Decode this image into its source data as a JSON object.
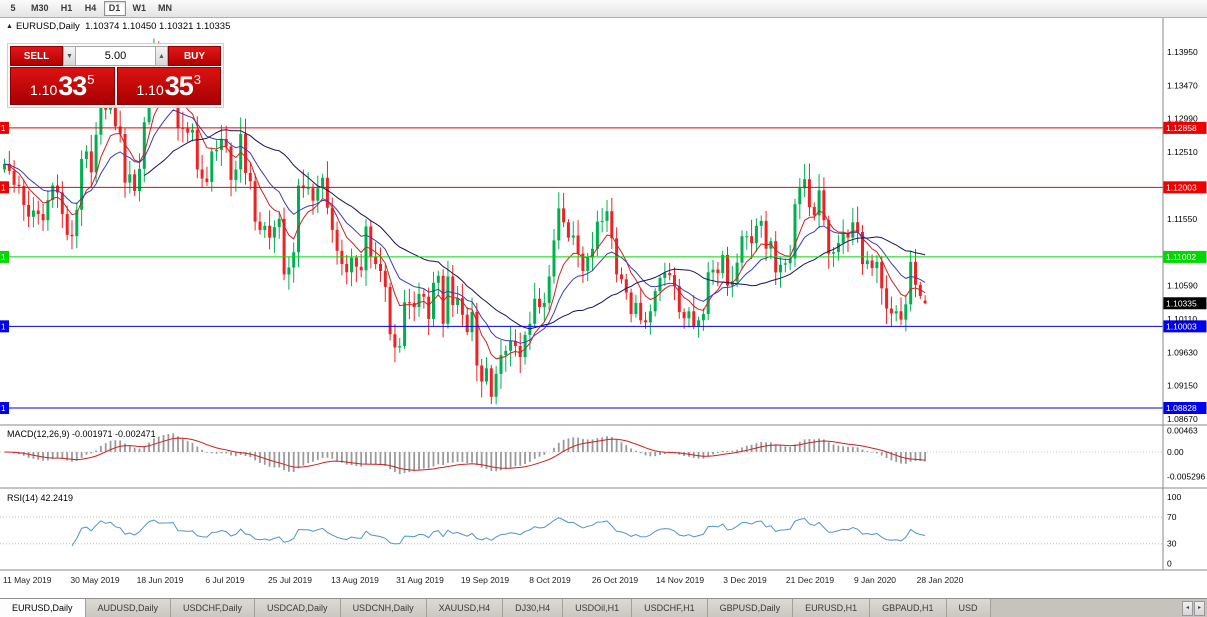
{
  "toolbar": {
    "periods": [
      {
        "label": "5",
        "active": false
      },
      {
        "label": "M30",
        "active": false
      },
      {
        "label": "H1",
        "active": false
      },
      {
        "label": "H4",
        "active": false
      },
      {
        "label": "D1",
        "active": true
      },
      {
        "label": "W1",
        "active": false
      },
      {
        "label": "MN",
        "active": false
      }
    ]
  },
  "chart_header": {
    "title": "EURUSD,Daily",
    "ohlc": "1.10374 1.10450 1.10321 1.10335"
  },
  "trade_panel": {
    "sell_label": "SELL",
    "buy_label": "BUY",
    "volume": "5.00",
    "sell_price": {
      "big_figure": "1.10",
      "pips": "33",
      "pipette": "5"
    },
    "buy_price": {
      "big_figure": "1.10",
      "pips": "35",
      "pipette": "3"
    }
  },
  "chart_data": {
    "type": "candlestick",
    "symbol": "EURUSD",
    "period": "Daily",
    "last_ohlc": {
      "open": 1.10374,
      "high": 1.1045,
      "low": 1.10321,
      "close": 1.10335
    },
    "up_color": "#00b050",
    "down_color": "#ee2222",
    "closes": [
      1.1234,
      1.1224,
      1.1204,
      1.1202,
      1.1175,
      1.1158,
      1.1167,
      1.1162,
      1.1153,
      1.1182,
      1.1203,
      1.1193,
      1.1162,
      1.1132,
      1.113,
      1.1168,
      1.1241,
      1.1252,
      1.1222,
      1.1276,
      1.1334,
      1.1312,
      1.1328,
      1.1288,
      1.1277,
      1.1207,
      1.1219,
      1.1195,
      1.1227,
      1.1294,
      1.1369,
      1.1399,
      1.1366,
      1.1368,
      1.1369,
      1.1373,
      1.1286,
      1.1285,
      1.1279,
      1.1283,
      1.1226,
      1.1213,
      1.1208,
      1.1252,
      1.1254,
      1.127,
      1.1259,
      1.1211,
      1.1226,
      1.1277,
      1.1221,
      1.1209,
      1.1151,
      1.1139,
      1.1145,
      1.1128,
      1.1143,
      1.1155,
      1.1075,
      1.1085,
      1.1107,
      1.1203,
      1.1199,
      1.1199,
      1.1181,
      1.1199,
      1.1214,
      1.1171,
      1.1139,
      1.1109,
      1.109,
      1.1078,
      1.1099,
      1.1086,
      1.1081,
      1.1144,
      1.1101,
      1.109,
      1.108,
      1.1057,
      1.0989,
      1.097,
      1.0972,
      1.1035,
      1.1034,
      1.1028,
      1.1047,
      1.1043,
      1.1011,
      1.1063,
      1.1073,
      1.1004,
      1.1072,
      1.1031,
      1.1041,
      1.1017,
      1.0992,
      1.1021,
      1.0944,
      1.0921,
      1.094,
      1.0899,
      1.0932,
      1.0959,
      1.0965,
      1.0979,
      1.0972,
      1.0956,
      1.0988,
      1.1004,
      1.104,
      1.1028,
      1.1034,
      1.1072,
      1.1124,
      1.117,
      1.115,
      1.1128,
      1.1131,
      1.1105,
      1.108,
      1.1099,
      1.1112,
      1.1151,
      1.1152,
      1.1166,
      1.1127,
      1.1075,
      1.1068,
      1.1049,
      1.1018,
      1.1034,
      1.1009,
      1.1006,
      1.1022,
      1.1051,
      1.107,
      1.1077,
      1.1074,
      1.1058,
      1.1021,
      1.1012,
      1.1022,
      1.1001,
      1.1009,
      1.1018,
      1.1078,
      1.1082,
      1.1077,
      1.1103,
      1.1059,
      1.1065,
      1.1092,
      1.113,
      1.113,
      1.112,
      1.1145,
      1.1152,
      1.1112,
      1.1123,
      1.1078,
      1.1089,
      1.1091,
      1.1098,
      1.1176,
      1.1199,
      1.1212,
      1.1172,
      1.116,
      1.1196,
      1.1153,
      1.1105,
      1.1107,
      1.112,
      1.1134,
      1.1128,
      1.115,
      1.1136,
      1.109,
      1.1095,
      1.1084,
      1.1093,
      1.1055,
      1.1026,
      1.1019,
      1.1022,
      1.101,
      1.1032,
      1.1093,
      1.106,
      1.1044,
      1.10335
    ],
    "x_labels": [
      "11 May 2019",
      "30 May 2019",
      "18 Jun 2019",
      "6 Jul 2019",
      "25 Jul 2019",
      "13 Aug 2019",
      "31 Aug 2019",
      "19 Sep 2019",
      "8 Oct 2019",
      "26 Oct 2019",
      "14 Nov 2019",
      "3 Dec 2019",
      "21 Dec 2019",
      "9 Jan 2020",
      "28 Jan 2020"
    ],
    "y_ticks": [
      "1.13950",
      "1.13470",
      "1.12990",
      "1.12510",
      "1.11550",
      "1.10590",
      "1.10110",
      "1.09630",
      "1.09150",
      "1.08670"
    ],
    "hlines": [
      {
        "price": 1.12858,
        "label": "1.12858",
        "color": "#ee0000"
      },
      {
        "price": 1.12003,
        "label": "1.12003",
        "color": "#ee0000"
      },
      {
        "price": 1.11002,
        "label": "1.11002",
        "color": "#00d800"
      },
      {
        "price": 1.10003,
        "label": "1.10003",
        "color": "#0000ee"
      },
      {
        "price": 1.08828,
        "label": "1.08828",
        "color": "#0000ee"
      }
    ],
    "current_price": {
      "value": 1.10335,
      "label": "1.10335",
      "color": "#000000"
    },
    "moving_averages": [
      {
        "type": "ema",
        "period": 8,
        "color": "#cc2222"
      },
      {
        "type": "ema",
        "period": 16,
        "color": "#3c3cb4"
      },
      {
        "type": "sma",
        "period": 30,
        "color": "#14145e"
      }
    ],
    "indicators": {
      "macd": {
        "label": "MACD(12,26,9)",
        "value_text": "-0.001971 -0.002471",
        "fast": 12,
        "slow": 26,
        "signal": 9,
        "axis_ticks": [
          {
            "value": 0.00463,
            "label": "0.00463"
          },
          {
            "value": 0,
            "label": "0.00"
          },
          {
            "value": -0.005296,
            "label": "-0.005296"
          }
        ],
        "histogram_color": "#9a9a9a",
        "signal_color": "#cc2222"
      },
      "rsi": {
        "label": "RSI(14)",
        "value_text": "42.2419",
        "period": 14,
        "axis_ticks": [
          {
            "value": 100,
            "label": "100"
          },
          {
            "value": 70,
            "label": "70"
          },
          {
            "value": 30,
            "label": "30"
          },
          {
            "value": 0,
            "label": "0"
          }
        ],
        "levels": [
          70,
          30
        ],
        "line_color": "#4f93cf"
      }
    }
  },
  "bottom_tabs": {
    "tabs": [
      {
        "label": "EURUSD,Daily",
        "active": true
      },
      {
        "label": "AUDUSD,Daily",
        "active": false
      },
      {
        "label": "USDCHF,Daily",
        "active": false
      },
      {
        "label": "USDCAD,Daily",
        "active": false
      },
      {
        "label": "USDCNH,Daily",
        "active": false
      },
      {
        "label": "XAUUSD,H4",
        "active": false
      },
      {
        "label": "DJ30,H4",
        "active": false
      },
      {
        "label": "USDOil,H1",
        "active": false
      },
      {
        "label": "USDCHF,H1",
        "active": false
      },
      {
        "label": "GBPUSD,Daily",
        "active": false
      },
      {
        "label": "EURUSD,H1",
        "active": false
      },
      {
        "label": "GBPAUD,H1",
        "active": false
      },
      {
        "label": "USD",
        "active": false
      }
    ],
    "scroll_left": "◂",
    "scroll_right": "▸"
  }
}
